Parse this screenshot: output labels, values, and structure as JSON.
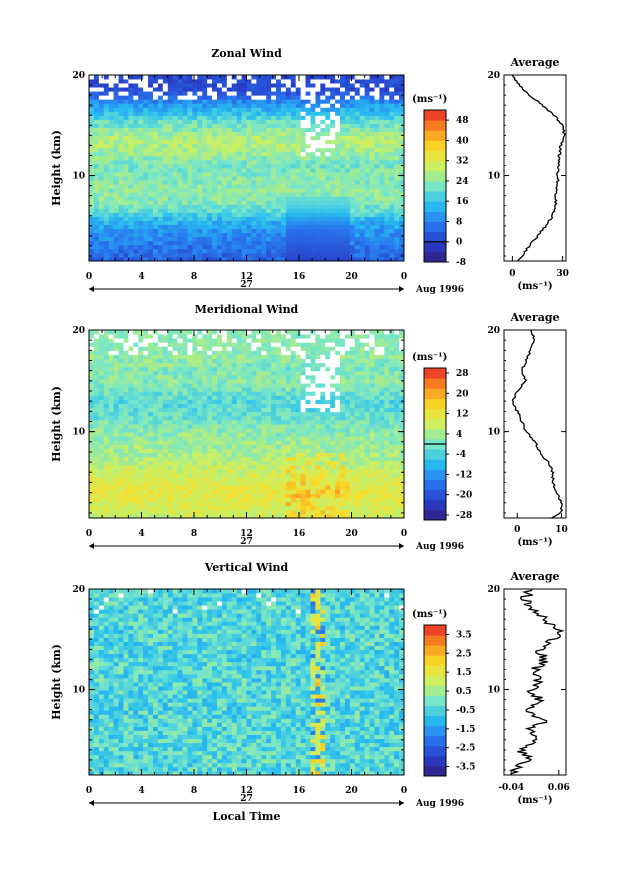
{
  "chart_data": [
    {
      "type": "heatmap",
      "title": "Zonal Wind",
      "ylabel": "Height (km)",
      "xlabel": "",
      "x_ticks": [
        "0",
        "4",
        "8",
        "12",
        "16",
        "20",
        "0"
      ],
      "y_ticks": [
        "20",
        "10"
      ],
      "date_label": "27",
      "date_suffix": "Aug 1996",
      "colorbar_unit": "(ms⁻¹)",
      "colorbar_ticks": [
        "48",
        "40",
        "32",
        "24",
        "16",
        "8",
        "0",
        "-8"
      ],
      "colorbar_range": [
        -8,
        52
      ],
      "colorbar_zero_line": 0,
      "xlim": [
        0,
        24
      ],
      "ylim": [
        1.5,
        20
      ],
      "average": {
        "title": "Average",
        "x_ticks": [
          "0",
          "30"
        ],
        "xlim": [
          -5,
          32
        ],
        "unit": "(ms⁻¹)",
        "y_ticks": [
          "20",
          "10"
        ],
        "profile_height": [
          1.5,
          2,
          3,
          4,
          5,
          6,
          7,
          8,
          9,
          10,
          11,
          12,
          13,
          14,
          15,
          16,
          17,
          18,
          19,
          20
        ],
        "profile_value": [
          4,
          6,
          10,
          15,
          20,
          24,
          26,
          26,
          27,
          27,
          28,
          28,
          29,
          31,
          30,
          25,
          18,
          10,
          4,
          0
        ]
      },
      "field": {
        "profile_height": [
          1.5,
          2.5,
          3.5,
          4.5,
          5.5,
          6.5,
          7.5,
          9,
          11,
          12.5,
          13.5,
          14.5,
          15.5,
          16.5,
          17.5,
          18.5,
          19.5
        ],
        "profile_value": [
          4,
          6,
          8,
          10,
          14,
          20,
          24,
          24,
          22,
          26,
          28,
          24,
          20,
          14,
          8,
          2,
          2
        ]
      }
    },
    {
      "type": "heatmap",
      "title": "Meridional Wind",
      "ylabel": "Height (km)",
      "xlabel": "",
      "x_ticks": [
        "0",
        "4",
        "8",
        "12",
        "16",
        "20",
        "0"
      ],
      "y_ticks": [
        "20",
        "10"
      ],
      "date_label": "27",
      "date_suffix": "Aug 1996",
      "colorbar_unit": "(ms⁻¹)",
      "colorbar_ticks": [
        "28",
        "20",
        "12",
        "4",
        "-4",
        "-12",
        "-20",
        "-28"
      ],
      "colorbar_range": [
        -30,
        30
      ],
      "colorbar_zero_line": 0,
      "xlim": [
        0,
        24
      ],
      "ylim": [
        1.5,
        20
      ],
      "average": {
        "title": "Average",
        "x_ticks": [
          "0",
          "10"
        ],
        "xlim": [
          -3,
          11
        ],
        "unit": "(ms⁻¹)",
        "y_ticks": [
          "20",
          "10"
        ],
        "profile_height": [
          1.5,
          2,
          3,
          4,
          5,
          6,
          7,
          8,
          9,
          10,
          11,
          12,
          13,
          14,
          15,
          16,
          17,
          18,
          19,
          20
        ],
        "profile_value": [
          8,
          10,
          10,
          9,
          8,
          8,
          7,
          5,
          4,
          2,
          1,
          0,
          -1,
          0,
          2,
          1,
          2,
          3,
          4,
          3
        ]
      },
      "field": {
        "profile_height": [
          1.5,
          3,
          4,
          5,
          6,
          7,
          8,
          9,
          10,
          11,
          12,
          13,
          14,
          15,
          16,
          17,
          18,
          19
        ],
        "profile_value": [
          8,
          10,
          12,
          10,
          8,
          6,
          4,
          3,
          2,
          0,
          -2,
          -3,
          0,
          2,
          1,
          2,
          3,
          3
        ]
      }
    },
    {
      "type": "heatmap",
      "title": "Vertical Wind",
      "ylabel": "Height (km)",
      "xlabel": "Local Time",
      "x_ticks": [
        "0",
        "4",
        "8",
        "12",
        "16",
        "20",
        "0"
      ],
      "y_ticks": [
        "20",
        "10"
      ],
      "date_label": "27",
      "date_suffix": "Aug 1996",
      "colorbar_unit": "(ms⁻¹)",
      "colorbar_ticks": [
        "3.5",
        "2.5",
        "1.5",
        "0.5",
        "-0.5",
        "-1.5",
        "-2.5",
        "-3.5"
      ],
      "colorbar_range": [
        -4,
        4
      ],
      "colorbar_zero_line": null,
      "xlim": [
        0,
        24
      ],
      "ylim": [
        1.5,
        20
      ],
      "average": {
        "title": "Average",
        "x_ticks": [
          "-0.04",
          "0.06"
        ],
        "xlim": [
          -0.055,
          0.075
        ],
        "unit": "(ms⁻¹)",
        "y_ticks": [
          "20",
          "10"
        ],
        "profile_height": [
          1.5,
          2,
          3,
          4,
          5,
          6,
          7,
          8,
          9,
          10,
          11,
          12,
          13,
          14,
          15,
          16,
          17,
          18,
          19,
          20
        ],
        "profile_value": [
          -0.03,
          -0.04,
          0.0,
          -0.02,
          0.02,
          0.0,
          0.03,
          -0.01,
          0.02,
          0.0,
          0.02,
          0.01,
          0.03,
          0.02,
          0.05,
          0.06,
          0.03,
          0.0,
          -0.01,
          0.0
        ]
      },
      "field": {
        "profile_height": [
          1.5,
          20
        ],
        "profile_value": [
          -0.4,
          -0.4
        ]
      }
    }
  ]
}
